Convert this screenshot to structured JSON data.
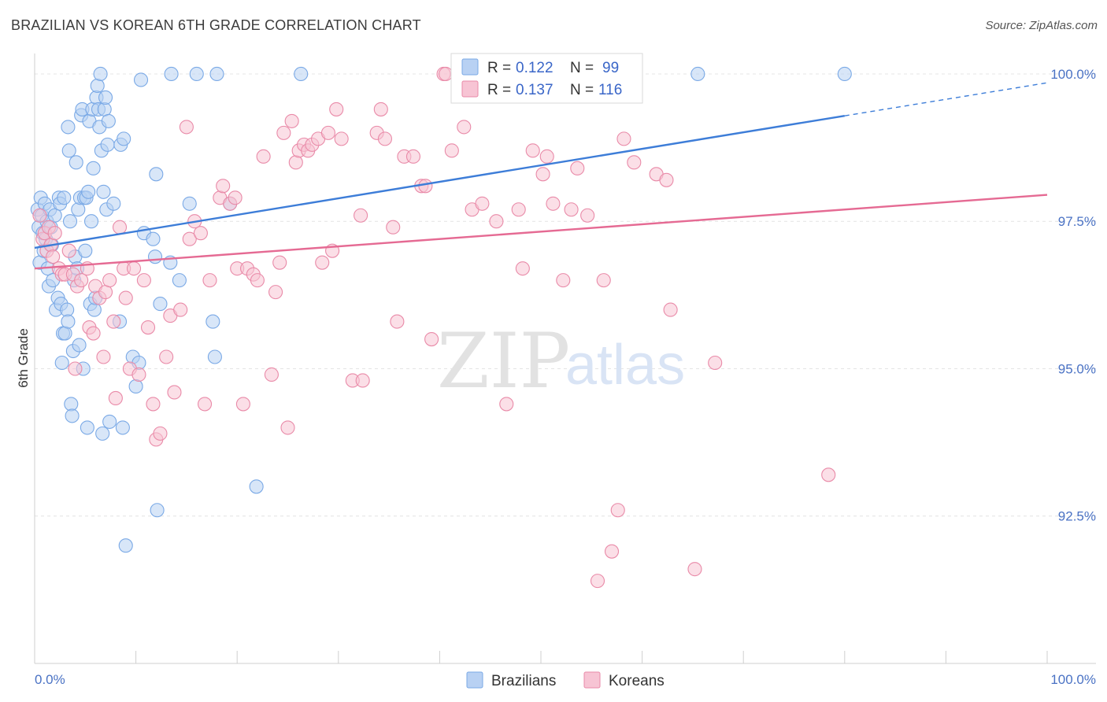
{
  "header": {
    "title": "BRAZILIAN VS KOREAN 6TH GRADE CORRELATION CHART",
    "source": "Source: ZipAtlas.com"
  },
  "watermark": {
    "zip": "ZIP",
    "atlas": "atlas"
  },
  "legend": {
    "rows": [
      {
        "r_label": "R =",
        "r_value": "0.122",
        "n_label": "N =",
        "n_value": "99",
        "color": "#7aa9e6",
        "fill": "#b8d1f3"
      },
      {
        "r_label": "R =",
        "r_value": "0.137",
        "n_label": "N =",
        "n_value": "116",
        "color": "#e98aa8",
        "fill": "#f7c4d4"
      }
    ]
  },
  "bottom_legend": [
    {
      "label": "Brazilians",
      "color": "#7aa9e6",
      "fill": "#b8d1f3"
    },
    {
      "label": "Koreans",
      "color": "#e98aa8",
      "fill": "#f7c4d4"
    }
  ],
  "chart_data": {
    "type": "scatter",
    "title": "BRAZILIAN VS KOREAN 6TH GRADE CORRELATION CHART",
    "xlabel": "",
    "ylabel": "6th Grade",
    "xlim": [
      0,
      100
    ],
    "ylim": [
      90.0,
      100.2
    ],
    "x_tick_labels": [
      "0.0%",
      "100.0%"
    ],
    "y_ticks": [
      100.0,
      97.5,
      95.0,
      92.5
    ],
    "y_tick_labels": [
      "100.0%",
      "97.5%",
      "95.0%",
      "92.5%"
    ],
    "grid": true,
    "legend_position": "top-center",
    "series": [
      {
        "name": "Brazilians",
        "color": "#3d7dd8",
        "fill": "#b8d1f3",
        "stroke": "#7aa9e6",
        "trend": {
          "x0": 0,
          "y0": 97.05,
          "x1": 100,
          "y1": 99.85,
          "solid_until": 80
        },
        "points": [
          [
            0.3,
            97.7
          ],
          [
            0.4,
            97.4
          ],
          [
            0.5,
            96.8
          ],
          [
            0.6,
            97.9
          ],
          [
            0.7,
            97.6
          ],
          [
            0.8,
            97.3
          ],
          [
            0.9,
            97.0
          ],
          [
            1.0,
            97.8
          ],
          [
            1.1,
            97.2
          ],
          [
            1.2,
            97.5
          ],
          [
            1.3,
            96.7
          ],
          [
            1.4,
            96.4
          ],
          [
            1.5,
            97.7
          ],
          [
            1.6,
            97.4
          ],
          [
            1.7,
            97.1
          ],
          [
            1.8,
            96.5
          ],
          [
            2.0,
            97.6
          ],
          [
            2.1,
            96.0
          ],
          [
            2.3,
            96.2
          ],
          [
            2.4,
            97.9
          ],
          [
            2.5,
            97.8
          ],
          [
            2.6,
            96.1
          ],
          [
            2.7,
            95.1
          ],
          [
            2.8,
            95.6
          ],
          [
            2.9,
            97.9
          ],
          [
            3.0,
            95.6
          ],
          [
            3.2,
            96.0
          ],
          [
            3.3,
            95.8
          ],
          [
            3.3,
            99.1
          ],
          [
            3.4,
            98.7
          ],
          [
            3.5,
            97.5
          ],
          [
            3.6,
            94.4
          ],
          [
            3.7,
            94.2
          ],
          [
            3.8,
            95.3
          ],
          [
            3.9,
            96.5
          ],
          [
            4.0,
            96.9
          ],
          [
            4.1,
            98.5
          ],
          [
            4.2,
            96.7
          ],
          [
            4.3,
            97.7
          ],
          [
            4.4,
            95.4
          ],
          [
            4.5,
            97.9
          ],
          [
            4.6,
            99.3
          ],
          [
            4.7,
            99.4
          ],
          [
            4.8,
            95.0
          ],
          [
            4.9,
            97.9
          ],
          [
            5.0,
            97.0
          ],
          [
            5.1,
            97.9
          ],
          [
            5.2,
            94.0
          ],
          [
            5.3,
            98.0
          ],
          [
            5.4,
            99.2
          ],
          [
            5.5,
            96.1
          ],
          [
            5.6,
            97.5
          ],
          [
            5.7,
            99.4
          ],
          [
            5.8,
            98.4
          ],
          [
            5.9,
            96.0
          ],
          [
            6.0,
            96.2
          ],
          [
            6.1,
            99.6
          ],
          [
            6.2,
            99.8
          ],
          [
            6.3,
            99.4
          ],
          [
            6.4,
            99.1
          ],
          [
            6.5,
            100.0
          ],
          [
            6.6,
            98.7
          ],
          [
            6.7,
            93.9
          ],
          [
            6.8,
            98.0
          ],
          [
            6.9,
            99.4
          ],
          [
            7.0,
            99.6
          ],
          [
            7.1,
            97.7
          ],
          [
            7.2,
            98.8
          ],
          [
            7.3,
            99.2
          ],
          [
            7.4,
            94.1
          ],
          [
            7.8,
            97.8
          ],
          [
            8.4,
            95.8
          ],
          [
            8.5,
            98.8
          ],
          [
            8.7,
            94.0
          ],
          [
            8.8,
            98.9
          ],
          [
            9.0,
            92.0
          ],
          [
            9.7,
            95.2
          ],
          [
            10.0,
            94.7
          ],
          [
            10.3,
            95.1
          ],
          [
            10.5,
            99.9
          ],
          [
            10.8,
            97.3
          ],
          [
            11.7,
            97.2
          ],
          [
            11.9,
            96.9
          ],
          [
            12.0,
            98.3
          ],
          [
            12.1,
            92.6
          ],
          [
            12.4,
            96.1
          ],
          [
            13.4,
            96.8
          ],
          [
            13.5,
            100.0
          ],
          [
            14.3,
            96.5
          ],
          [
            15.3,
            97.8
          ],
          [
            16.0,
            100.0
          ],
          [
            17.6,
            95.8
          ],
          [
            17.8,
            95.2
          ],
          [
            18.0,
            100.0
          ],
          [
            19.3,
            97.8
          ],
          [
            21.9,
            93.0
          ],
          [
            26.3,
            100.0
          ],
          [
            65.5,
            100.0
          ],
          [
            80.0,
            100.0
          ]
        ]
      },
      {
        "name": "Koreans",
        "color": "#e56a93",
        "fill": "#f7c4d4",
        "stroke": "#e98aa8",
        "trend": {
          "x0": 0,
          "y0": 96.7,
          "x1": 100,
          "y1": 97.95,
          "solid_until": 100
        },
        "points": [
          [
            0.5,
            97.6
          ],
          [
            0.8,
            97.2
          ],
          [
            1.0,
            97.3
          ],
          [
            1.2,
            97.0
          ],
          [
            1.4,
            97.4
          ],
          [
            1.6,
            97.1
          ],
          [
            1.8,
            96.9
          ],
          [
            2.0,
            97.3
          ],
          [
            2.4,
            96.7
          ],
          [
            2.7,
            96.6
          ],
          [
            3.0,
            96.6
          ],
          [
            3.4,
            97.0
          ],
          [
            3.8,
            96.6
          ],
          [
            4.0,
            95.0
          ],
          [
            4.2,
            96.4
          ],
          [
            4.6,
            96.5
          ],
          [
            5.2,
            96.7
          ],
          [
            5.4,
            95.7
          ],
          [
            5.8,
            95.6
          ],
          [
            6.0,
            96.4
          ],
          [
            6.4,
            96.2
          ],
          [
            6.8,
            95.2
          ],
          [
            7.0,
            96.3
          ],
          [
            7.4,
            96.5
          ],
          [
            7.8,
            95.8
          ],
          [
            8.0,
            94.5
          ],
          [
            8.4,
            97.4
          ],
          [
            8.8,
            96.7
          ],
          [
            9.0,
            96.2
          ],
          [
            9.4,
            95.0
          ],
          [
            9.8,
            96.7
          ],
          [
            10.3,
            94.9
          ],
          [
            10.8,
            96.5
          ],
          [
            11.2,
            95.7
          ],
          [
            11.7,
            94.4
          ],
          [
            12.0,
            93.8
          ],
          [
            12.4,
            93.9
          ],
          [
            13.0,
            95.2
          ],
          [
            13.4,
            95.9
          ],
          [
            13.8,
            94.6
          ],
          [
            14.4,
            96.0
          ],
          [
            15.0,
            99.1
          ],
          [
            15.3,
            97.2
          ],
          [
            15.8,
            97.5
          ],
          [
            16.4,
            97.3
          ],
          [
            16.8,
            94.4
          ],
          [
            17.3,
            96.5
          ],
          [
            18.3,
            97.9
          ],
          [
            18.6,
            98.1
          ],
          [
            19.3,
            97.8
          ],
          [
            19.8,
            97.9
          ],
          [
            20.0,
            96.7
          ],
          [
            20.6,
            94.4
          ],
          [
            21.0,
            96.7
          ],
          [
            21.6,
            96.6
          ],
          [
            22.0,
            96.5
          ],
          [
            22.6,
            98.6
          ],
          [
            23.4,
            94.9
          ],
          [
            23.8,
            96.3
          ],
          [
            24.2,
            96.8
          ],
          [
            24.6,
            99.0
          ],
          [
            25.0,
            94.0
          ],
          [
            25.4,
            99.2
          ],
          [
            25.8,
            98.5
          ],
          [
            26.1,
            98.7
          ],
          [
            26.6,
            98.8
          ],
          [
            27.0,
            98.7
          ],
          [
            27.4,
            98.8
          ],
          [
            28.0,
            98.9
          ],
          [
            28.4,
            96.8
          ],
          [
            29.0,
            99.0
          ],
          [
            29.4,
            97.0
          ],
          [
            29.8,
            99.4
          ],
          [
            30.3,
            98.9
          ],
          [
            31.4,
            94.8
          ],
          [
            32.2,
            97.6
          ],
          [
            32.4,
            94.8
          ],
          [
            33.8,
            99.0
          ],
          [
            34.2,
            99.4
          ],
          [
            34.6,
            98.9
          ],
          [
            35.4,
            97.4
          ],
          [
            35.8,
            95.8
          ],
          [
            36.5,
            98.6
          ],
          [
            37.4,
            98.6
          ],
          [
            38.2,
            98.1
          ],
          [
            38.6,
            98.1
          ],
          [
            39.2,
            95.5
          ],
          [
            40.4,
            100.0
          ],
          [
            40.6,
            100.0
          ],
          [
            41.2,
            98.7
          ],
          [
            42.4,
            99.1
          ],
          [
            43.2,
            97.7
          ],
          [
            44.2,
            97.8
          ],
          [
            45.6,
            97.5
          ],
          [
            46.6,
            94.4
          ],
          [
            47.2,
            100.0
          ],
          [
            47.8,
            97.7
          ],
          [
            48.2,
            96.7
          ],
          [
            49.2,
            98.7
          ],
          [
            50.2,
            98.3
          ],
          [
            50.6,
            98.6
          ],
          [
            51.2,
            97.8
          ],
          [
            52.2,
            96.5
          ],
          [
            53.0,
            97.7
          ],
          [
            53.6,
            98.4
          ],
          [
            54.6,
            97.6
          ],
          [
            55.6,
            91.4
          ],
          [
            56.2,
            96.5
          ],
          [
            57.0,
            91.9
          ],
          [
            57.6,
            92.6
          ],
          [
            58.2,
            98.9
          ],
          [
            59.2,
            98.5
          ],
          [
            61.4,
            98.3
          ],
          [
            62.4,
            98.2
          ],
          [
            62.8,
            96.0
          ],
          [
            65.2,
            91.6
          ],
          [
            67.2,
            95.1
          ],
          [
            78.4,
            93.2
          ]
        ]
      }
    ]
  }
}
